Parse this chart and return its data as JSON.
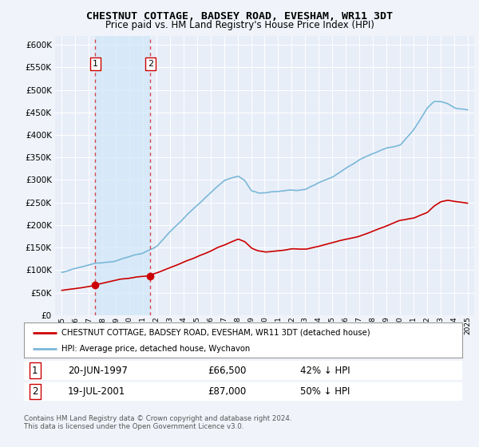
{
  "title": "CHESTNUT COTTAGE, BADSEY ROAD, EVESHAM, WR11 3DT",
  "subtitle": "Price paid vs. HM Land Registry's House Price Index (HPI)",
  "legend_entry1": "CHESTNUT COTTAGE, BADSEY ROAD, EVESHAM, WR11 3DT (detached house)",
  "legend_entry2": "HPI: Average price, detached house, Wychavon",
  "footnote": "Contains HM Land Registry data © Crown copyright and database right 2024.\nThis data is licensed under the Open Government Licence v3.0.",
  "transaction1_date": "20-JUN-1997",
  "transaction1_price": "£66,500",
  "transaction1_hpi": "42% ↓ HPI",
  "transaction1_x": 1997.47,
  "transaction1_y": 66500,
  "transaction2_date": "19-JUL-2001",
  "transaction2_price": "£87,000",
  "transaction2_hpi": "50% ↓ HPI",
  "transaction2_x": 2001.54,
  "transaction2_y": 87000,
  "hpi_color": "#7ab8d9",
  "price_color": "#cc0000",
  "marker_color": "#cc0000",
  "dashed_color": "#cc0000",
  "bg_color": "#f0f4fa",
  "plot_bg": "#e8eef8",
  "shade_color": "#d0e8f8",
  "ylim": [
    0,
    620000
  ],
  "yticks": [
    0,
    50000,
    100000,
    150000,
    200000,
    250000,
    300000,
    350000,
    400000,
    450000,
    500000,
    550000,
    600000
  ],
  "xlim": [
    1994.5,
    2025.5
  ],
  "xticks": [
    1995,
    1996,
    1997,
    1998,
    1999,
    2000,
    2001,
    2002,
    2003,
    2004,
    2005,
    2006,
    2007,
    2008,
    2009,
    2010,
    2011,
    2012,
    2013,
    2014,
    2015,
    2016,
    2017,
    2018,
    2019,
    2020,
    2021,
    2022,
    2023,
    2024,
    2025
  ]
}
